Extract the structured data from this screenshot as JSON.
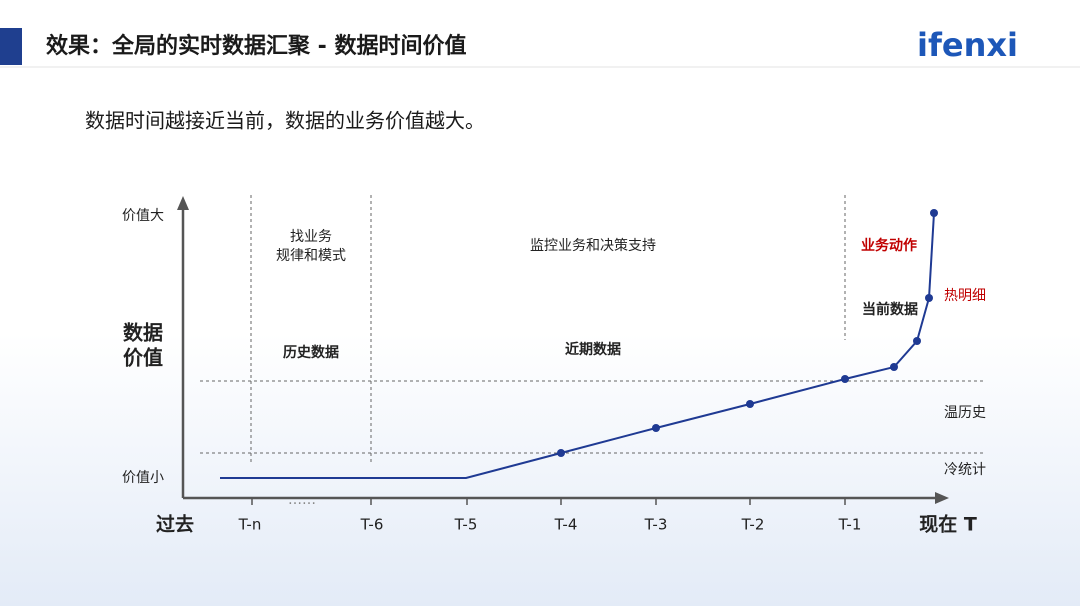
{
  "header": {
    "title": "效果：全局的实时数据汇聚 - 数据时间价值",
    "logo": "ifenxi"
  },
  "subtitle": "数据时间越接近当前，数据的业务价值越大。",
  "diagram": {
    "y_axis": {
      "top": "价值大",
      "bottom": "价值小",
      "label": [
        "数据",
        "价值"
      ]
    },
    "x_axis": {
      "start": "过去",
      "end": "现在 T",
      "ellipsis": "……",
      "labels": [
        "T-n",
        "T-6",
        "T-5",
        "T-4",
        "T-3",
        "T-2",
        "T-1"
      ]
    },
    "regions": {
      "find": [
        "找业务",
        "规律和模式"
      ],
      "monitor": "监控业务和决策支持",
      "action": "业务动作",
      "history": "历史数据",
      "recent": "近期数据",
      "current": "当前数据"
    },
    "tiers": {
      "hot": "热明细",
      "warm": "温历史",
      "cold": "冷统计"
    }
  }
}
